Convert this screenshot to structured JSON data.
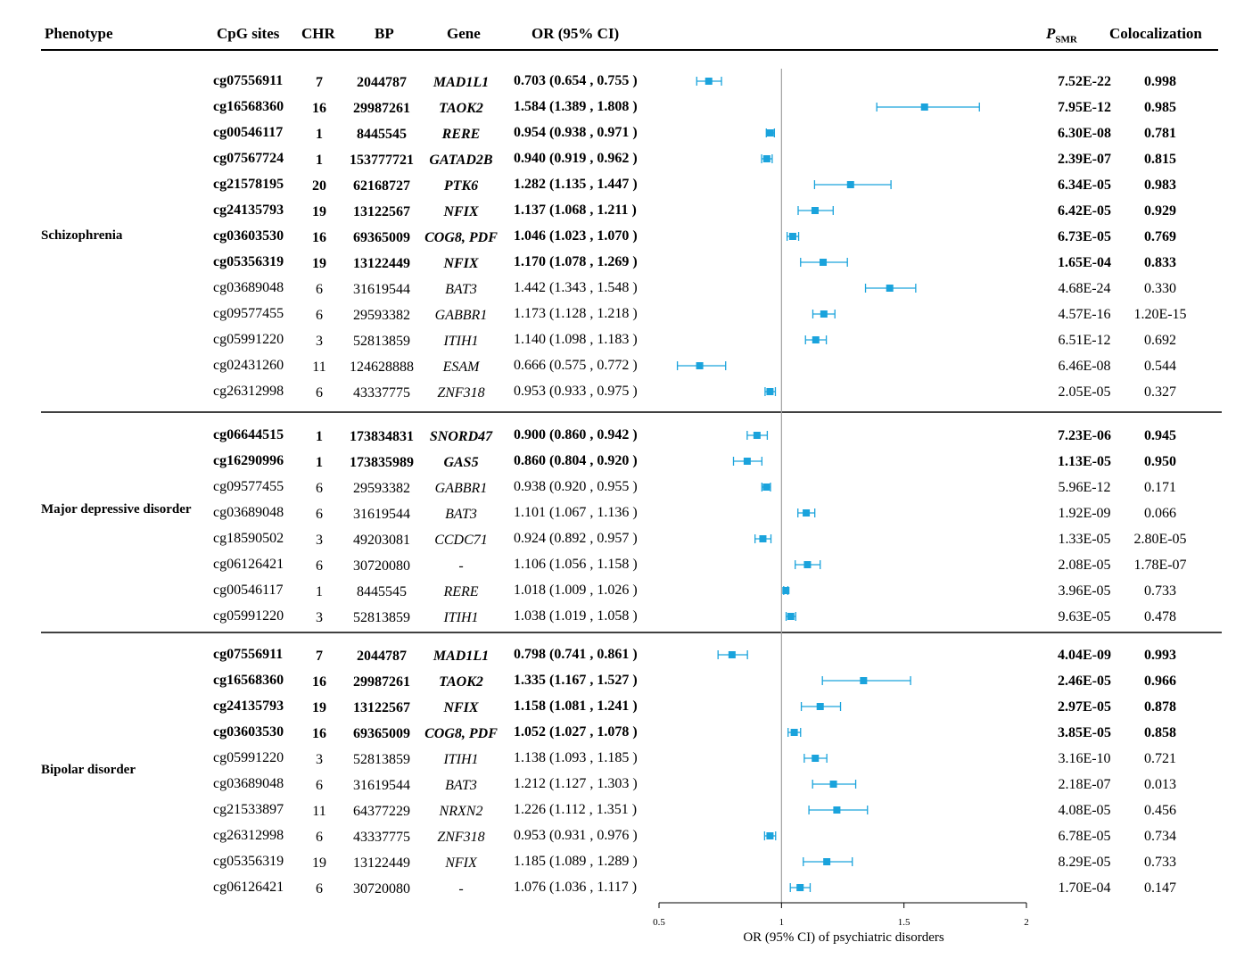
{
  "headers": {
    "phenotype": "Phenotype",
    "cpg": "CpG sites",
    "chr": "CHR",
    "bp": "BP",
    "gene": "Gene",
    "or": "OR (95% CI)",
    "p_main": "P",
    "p_sub": "SMR",
    "coloc": "Colocalization"
  },
  "colors": {
    "marker": "#1aa3dc",
    "refline": "#a0a0a0",
    "rule": "#000000"
  },
  "chart_data": {
    "type": "forest",
    "xlabel": "OR (95% CI) of psychiatric disorders",
    "xlim": [
      0.5,
      2
    ],
    "xticks": [
      "0.5",
      "1",
      "1.5",
      "2"
    ],
    "reference_line": 1,
    "groups": [
      {
        "phenotype": "Schizophrenia",
        "rows": [
          {
            "cpg": "cg07556911",
            "chr": "7",
            "bp": "2044787",
            "gene": "MAD1L1",
            "or_text": "0.703 (0.654 , 0.755 )",
            "or": 0.703,
            "lo": 0.654,
            "hi": 0.755,
            "p": "7.52E-22",
            "coloc": "0.998",
            "bold": true
          },
          {
            "cpg": "cg16568360",
            "chr": "16",
            "bp": "29987261",
            "gene": "TAOK2",
            "or_text": "1.584 (1.389 , 1.808 )",
            "or": 1.584,
            "lo": 1.389,
            "hi": 1.808,
            "p": "7.95E-12",
            "coloc": "0.985",
            "bold": true
          },
          {
            "cpg": "cg00546117",
            "chr": "1",
            "bp": "8445545",
            "gene": "RERE",
            "or_text": "0.954 (0.938 , 0.971 )",
            "or": 0.954,
            "lo": 0.938,
            "hi": 0.971,
            "p": "6.30E-08",
            "coloc": "0.781",
            "bold": true
          },
          {
            "cpg": "cg07567724",
            "chr": "1",
            "bp": "153777721",
            "gene": "GATAD2B",
            "or_text": "0.940 (0.919 , 0.962 )",
            "or": 0.94,
            "lo": 0.919,
            "hi": 0.962,
            "p": "2.39E-07",
            "coloc": "0.815",
            "bold": true
          },
          {
            "cpg": "cg21578195",
            "chr": "20",
            "bp": "62168727",
            "gene": "PTK6",
            "or_text": "1.282 (1.135 , 1.447 )",
            "or": 1.282,
            "lo": 1.135,
            "hi": 1.447,
            "p": "6.34E-05",
            "coloc": "0.983",
            "bold": true
          },
          {
            "cpg": "cg24135793",
            "chr": "19",
            "bp": "13122567",
            "gene": "NFIX",
            "or_text": "1.137 (1.068 , 1.211 )",
            "or": 1.137,
            "lo": 1.068,
            "hi": 1.211,
            "p": "6.42E-05",
            "coloc": "0.929",
            "bold": true
          },
          {
            "cpg": "cg03603530",
            "chr": "16",
            "bp": "69365009",
            "gene": "COG8, PDF",
            "or_text": "1.046 (1.023 , 1.070 )",
            "or": 1.046,
            "lo": 1.023,
            "hi": 1.07,
            "p": "6.73E-05",
            "coloc": "0.769",
            "bold": true
          },
          {
            "cpg": "cg05356319",
            "chr": "19",
            "bp": "13122449",
            "gene": "NFIX",
            "or_text": "1.170 (1.078 , 1.269 )",
            "or": 1.17,
            "lo": 1.078,
            "hi": 1.269,
            "p": "1.65E-04",
            "coloc": "0.833",
            "bold": true
          },
          {
            "cpg": "cg03689048",
            "chr": "6",
            "bp": "31619544",
            "gene": "BAT3",
            "or_text": "1.442 (1.343 , 1.548 )",
            "or": 1.442,
            "lo": 1.343,
            "hi": 1.548,
            "p": "4.68E-24",
            "coloc": "0.330",
            "bold": false
          },
          {
            "cpg": "cg09577455",
            "chr": "6",
            "bp": "29593382",
            "gene": "GABBR1",
            "or_text": "1.173 (1.128 , 1.218 )",
            "or": 1.173,
            "lo": 1.128,
            "hi": 1.218,
            "p": "4.57E-16",
            "coloc": "1.20E-15",
            "bold": false
          },
          {
            "cpg": "cg05991220",
            "chr": "3",
            "bp": "52813859",
            "gene": "ITIH1",
            "or_text": "1.140 (1.098 , 1.183 )",
            "or": 1.14,
            "lo": 1.098,
            "hi": 1.183,
            "p": "6.51E-12",
            "coloc": "0.692",
            "bold": false
          },
          {
            "cpg": "cg02431260",
            "chr": "11",
            "bp": "124628888",
            "gene": "ESAM",
            "or_text": "0.666 (0.575 , 0.772 )",
            "or": 0.666,
            "lo": 0.575,
            "hi": 0.772,
            "p": "6.46E-08",
            "coloc": "0.544",
            "bold": false
          },
          {
            "cpg": "cg26312998",
            "chr": "6",
            "bp": "43337775",
            "gene": "ZNF318",
            "or_text": "0.953 (0.933 , 0.975 )",
            "or": 0.953,
            "lo": 0.933,
            "hi": 0.975,
            "p": "2.05E-05",
            "coloc": "0.327",
            "bold": false
          }
        ]
      },
      {
        "phenotype": "Major depressive disorder",
        "rows": [
          {
            "cpg": "cg06644515",
            "chr": "1",
            "bp": "173834831",
            "gene": "SNORD47",
            "or_text": "0.900 (0.860 , 0.942 )",
            "or": 0.9,
            "lo": 0.86,
            "hi": 0.942,
            "p": "7.23E-06",
            "coloc": "0.945",
            "bold": true
          },
          {
            "cpg": "cg16290996",
            "chr": "1",
            "bp": "173835989",
            "gene": "GAS5",
            "or_text": "0.860 (0.804 , 0.920 )",
            "or": 0.86,
            "lo": 0.804,
            "hi": 0.92,
            "p": "1.13E-05",
            "coloc": "0.950",
            "bold": true
          },
          {
            "cpg": "cg09577455",
            "chr": "6",
            "bp": "29593382",
            "gene": "GABBR1",
            "or_text": "0.938 (0.920 , 0.955 )",
            "or": 0.938,
            "lo": 0.92,
            "hi": 0.955,
            "p": "5.96E-12",
            "coloc": "0.171",
            "bold": false
          },
          {
            "cpg": "cg03689048",
            "chr": "6",
            "bp": "31619544",
            "gene": "BAT3",
            "or_text": "1.101 (1.067 , 1.136 )",
            "or": 1.101,
            "lo": 1.067,
            "hi": 1.136,
            "p": "1.92E-09",
            "coloc": "0.066",
            "bold": false
          },
          {
            "cpg": "cg18590502",
            "chr": "3",
            "bp": "49203081",
            "gene": "CCDC71",
            "or_text": "0.924 (0.892 , 0.957 )",
            "or": 0.924,
            "lo": 0.892,
            "hi": 0.957,
            "p": "1.33E-05",
            "coloc": "2.80E-05",
            "bold": false
          },
          {
            "cpg": "cg06126421",
            "chr": "6",
            "bp": "30720080",
            "gene": "-",
            "or_text": "1.106 (1.056 , 1.158 )",
            "or": 1.106,
            "lo": 1.056,
            "hi": 1.158,
            "p": "2.08E-05",
            "coloc": "1.78E-07",
            "bold": false
          },
          {
            "cpg": "cg00546117",
            "chr": "1",
            "bp": "8445545",
            "gene": "RERE",
            "or_text": "1.018 (1.009 , 1.026 )",
            "or": 1.018,
            "lo": 1.009,
            "hi": 1.026,
            "p": "3.96E-05",
            "coloc": "0.733",
            "bold": false
          },
          {
            "cpg": "cg05991220",
            "chr": "3",
            "bp": "52813859",
            "gene": "ITIH1",
            "or_text": "1.038 (1.019 , 1.058 )",
            "or": 1.038,
            "lo": 1.019,
            "hi": 1.058,
            "p": "9.63E-05",
            "coloc": "0.478",
            "bold": false
          }
        ]
      },
      {
        "phenotype": "Bipolar disorder",
        "rows": [
          {
            "cpg": "cg07556911",
            "chr": "7",
            "bp": "2044787",
            "gene": "MAD1L1",
            "or_text": "0.798 (0.741 , 0.861 )",
            "or": 0.798,
            "lo": 0.741,
            "hi": 0.861,
            "p": "4.04E-09",
            "coloc": "0.993",
            "bold": true
          },
          {
            "cpg": "cg16568360",
            "chr": "16",
            "bp": "29987261",
            "gene": "TAOK2",
            "or_text": "1.335 (1.167 , 1.527 )",
            "or": 1.335,
            "lo": 1.167,
            "hi": 1.527,
            "p": "2.46E-05",
            "coloc": "0.966",
            "bold": true
          },
          {
            "cpg": "cg24135793",
            "chr": "19",
            "bp": "13122567",
            "gene": "NFIX",
            "or_text": "1.158 (1.081 , 1.241 )",
            "or": 1.158,
            "lo": 1.081,
            "hi": 1.241,
            "p": "2.97E-05",
            "coloc": "0.878",
            "bold": true
          },
          {
            "cpg": "cg03603530",
            "chr": "16",
            "bp": "69365009",
            "gene": "COG8, PDF",
            "or_text": "1.052 (1.027 , 1.078 )",
            "or": 1.052,
            "lo": 1.027,
            "hi": 1.078,
            "p": "3.85E-05",
            "coloc": "0.858",
            "bold": true
          },
          {
            "cpg": "cg05991220",
            "chr": "3",
            "bp": "52813859",
            "gene": "ITIH1",
            "or_text": "1.138 (1.093 , 1.185 )",
            "or": 1.138,
            "lo": 1.093,
            "hi": 1.185,
            "p": "3.16E-10",
            "coloc": "0.721",
            "bold": false
          },
          {
            "cpg": "cg03689048",
            "chr": "6",
            "bp": "31619544",
            "gene": "BAT3",
            "or_text": "1.212 (1.127 , 1.303 )",
            "or": 1.212,
            "lo": 1.127,
            "hi": 1.303,
            "p": "2.18E-07",
            "coloc": "0.013",
            "bold": false
          },
          {
            "cpg": "cg21533897",
            "chr": "11",
            "bp": "64377229",
            "gene": "NRXN2",
            "or_text": "1.226 (1.112 , 1.351 )",
            "or": 1.226,
            "lo": 1.112,
            "hi": 1.351,
            "p": "4.08E-05",
            "coloc": "0.456",
            "bold": false
          },
          {
            "cpg": "cg26312998",
            "chr": "6",
            "bp": "43337775",
            "gene": "ZNF318",
            "or_text": "0.953 (0.931 , 0.976 )",
            "or": 0.953,
            "lo": 0.931,
            "hi": 0.976,
            "p": "6.78E-05",
            "coloc": "0.734",
            "bold": false
          },
          {
            "cpg": "cg05356319",
            "chr": "19",
            "bp": "13122449",
            "gene": "NFIX",
            "or_text": "1.185 (1.089 , 1.289 )",
            "or": 1.185,
            "lo": 1.089,
            "hi": 1.289,
            "p": "8.29E-05",
            "coloc": "0.733",
            "bold": false
          },
          {
            "cpg": "cg06126421",
            "chr": "6",
            "bp": "30720080",
            "gene": "-",
            "or_text": "1.076 (1.036 , 1.117 )",
            "or": 1.076,
            "lo": 1.036,
            "hi": 1.117,
            "p": "1.70E-04",
            "coloc": "0.147",
            "bold": false
          }
        ]
      }
    ]
  }
}
